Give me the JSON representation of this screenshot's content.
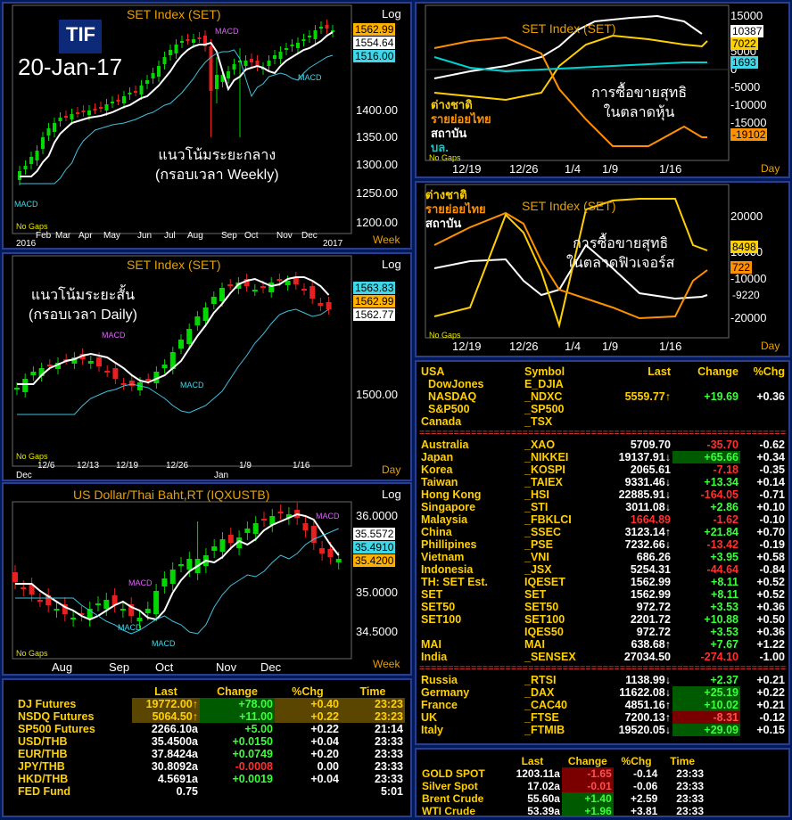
{
  "tif_logo": "TIF",
  "date_label": "20-Jan-17",
  "set_weekly": {
    "title": "SET Index (SET)",
    "scale": "Log",
    "unit": "Week",
    "no_gaps": "No Gaps",
    "note_line1": "แนวโน้มระยะกลาง",
    "note_line2": "(กรอบเวลา Weekly)",
    "y_ticks": [
      "1400.00",
      "1350.00",
      "1300.00",
      "1250.00",
      "1200.00"
    ],
    "x_ticks": [
      "Feb",
      "Mar",
      "Apr",
      "May",
      "Jun",
      "Jul",
      "Aug",
      "Sep",
      "Oct",
      "Nov",
      "Dec"
    ],
    "x_years": [
      "2016",
      "2017"
    ],
    "badges": [
      "1562.99",
      "1554.64",
      "1516.00"
    ],
    "macd": [
      "MACD",
      "MACD",
      "MACD"
    ]
  },
  "set_daily": {
    "title": "SET Index (SET)",
    "scale": "Log",
    "unit": "Day",
    "no_gaps": "No Gaps",
    "note_line1": "แนวโน้มระยะสั้น",
    "note_line2": "(กรอบเวลา Daily)",
    "y_ticks": [
      "1500.00"
    ],
    "x_ticks": [
      "12/6",
      "12/13",
      "12/19",
      "12/26",
      "1/9",
      "1/16"
    ],
    "x_months": [
      "Dec",
      "Jan"
    ],
    "badges": [
      "1563.83",
      "1562.99",
      "1562.77"
    ],
    "macd": [
      "MACD",
      "MACD"
    ]
  },
  "usd_thb": {
    "title": "US Dollar/Thai Baht,RT (IQXUSTB)",
    "scale": "Log",
    "unit": "Week",
    "no_gaps": "No Gaps",
    "y_ticks": [
      "36.0000",
      "35.0000",
      "34.5000"
    ],
    "x_ticks": [
      "Aug",
      "Sep",
      "Oct",
      "Nov",
      "Dec"
    ],
    "badges": [
      "35.5572",
      "35.4910",
      "35.4200"
    ],
    "macd": [
      "MACD",
      "MACD",
      "MACD",
      "MACD"
    ]
  },
  "net_stock": {
    "title": "SET Index (SET)",
    "unit": "Day",
    "no_gaps": "No Gaps",
    "note_line1": "การซื้อขายสุทธิ",
    "note_line2": "ในตลาดหุ้น",
    "legend": [
      "ต่างชาติ",
      "รายย่อยไทย",
      "สถาบัน",
      "บล."
    ],
    "y_ticks": [
      "15000",
      "10000",
      "5000",
      "0",
      "-5000",
      "-10000",
      "-15000"
    ],
    "x_ticks": [
      "12/19",
      "12/26",
      "1/4",
      "1/9",
      "1/16"
    ],
    "badges": [
      "10387",
      "7022",
      "1693",
      "-19102"
    ]
  },
  "net_futures": {
    "title": "SET Index (SET)",
    "unit": "Day",
    "no_gaps": "No Gaps",
    "note_line1": "การซื้อขายสุทธิ",
    "note_line2": "ในตลาดฟิวเจอร์ส",
    "legend": [
      "ต่างชาติ",
      "รายย่อยไทย",
      "สถาบัน"
    ],
    "y_ticks": [
      "20000",
      "10000",
      "-10000",
      "-20000"
    ],
    "x_ticks": [
      "12/19",
      "12/26",
      "1/4",
      "1/9",
      "1/16"
    ],
    "badges": [
      "8498",
      "722",
      "-9220"
    ]
  },
  "world": {
    "headers": [
      "USA",
      "Symbol",
      "Last",
      "Change",
      "%Chg"
    ],
    "separator": "==========================================================================",
    "usa": [
      {
        "name": "DowJones",
        "symbol": "E_DJIA",
        "last": "",
        "change": "",
        "pct": "",
        "dir": ""
      },
      {
        "name": "NASDAQ",
        "symbol": "_NDXC",
        "last": "5559.77↑",
        "change": "+19.69",
        "pct": "+0.36",
        "dir": "up"
      },
      {
        "name": "S&P500",
        "symbol": "_SP500",
        "last": "",
        "change": "",
        "pct": "",
        "dir": ""
      },
      {
        "name": "Canada",
        "symbol": "_TSX",
        "last": "",
        "change": "",
        "pct": "",
        "dir": ""
      }
    ],
    "asia": [
      {
        "name": "Australia",
        "symbol": "_XAO",
        "last": "5709.70",
        "change": "-35.70",
        "pct": "-0.62",
        "dir": "dn"
      },
      {
        "name": "Japan",
        "symbol": "_NIKKEI",
        "last": "19137.91↓",
        "change": "+65.66",
        "pct": "+0.34",
        "dir": "upb"
      },
      {
        "name": "Korea",
        "symbol": "_KOSPI",
        "last": "2065.61",
        "change": "-7.18",
        "pct": "-0.35",
        "dir": "dn"
      },
      {
        "name": "Taiwan",
        "symbol": "_TAIEX",
        "last": "9331.46↓",
        "change": "+13.34",
        "pct": "+0.14",
        "dir": "up"
      },
      {
        "name": "Hong Kong",
        "symbol": "_HSI",
        "last": "22885.91↓",
        "change": "-164.05",
        "pct": "-0.71",
        "dir": "dn"
      },
      {
        "name": "Singapore",
        "symbol": "_STI",
        "last": "3011.08↓",
        "change": "+2.86",
        "pct": "+0.10",
        "dir": "up"
      },
      {
        "name": "Malaysia",
        "symbol": "_FBKLCI",
        "last": "1664.89",
        "change": "-1.62",
        "pct": "-0.10",
        "dir": "dnl"
      },
      {
        "name": "China",
        "symbol": "_SSEC",
        "last": "3123.14↑",
        "change": "+21.84",
        "pct": "+0.70",
        "dir": "up"
      },
      {
        "name": "Phillipines",
        "symbol": "_PSE",
        "last": "7232.66↓",
        "change": "-13.42",
        "pct": "-0.19",
        "dir": "dn"
      },
      {
        "name": "Vietnam",
        "symbol": "_VNI",
        "last": "686.26",
        "change": "+3.95",
        "pct": "+0.58",
        "dir": "up"
      },
      {
        "name": "Indonesia",
        "symbol": "_JSX",
        "last": "5254.31",
        "change": "-44.64",
        "pct": "-0.84",
        "dir": "dn"
      },
      {
        "name": "TH: SET Est.",
        "symbol": "IQESET",
        "last": "1562.99",
        "change": "+8.11",
        "pct": "+0.52",
        "dir": "up"
      },
      {
        "name": "  SET",
        "symbol": "SET",
        "last": "1562.99",
        "change": "+8.11",
        "pct": "+0.52",
        "dir": "up"
      },
      {
        "name": "  SET50",
        "symbol": "SET50",
        "last": "972.72",
        "change": "+3.53",
        "pct": "+0.36",
        "dir": "up"
      },
      {
        "name": "  SET100",
        "symbol": "SET100",
        "last": "2201.72",
        "change": "+10.88",
        "pct": "+0.50",
        "dir": "up"
      },
      {
        "name": "",
        "symbol": "IQES50",
        "last": "972.72",
        "change": "+3.53",
        "pct": "+0.36",
        "dir": "up"
      },
      {
        "name": "  MAI",
        "symbol": "MAI",
        "last": "638.68↑",
        "change": "+7.67",
        "pct": "+1.22",
        "dir": "up"
      },
      {
        "name": "India",
        "symbol": "_SENSEX",
        "last": "27034.50",
        "change": "-274.10",
        "pct": "-1.00",
        "dir": "dn"
      }
    ],
    "europe": [
      {
        "name": "Russia",
        "symbol": "_RTSI",
        "last": "1138.99↓",
        "change": "+2.37",
        "pct": "+0.21",
        "dir": "up"
      },
      {
        "name": "Germany",
        "symbol": "_DAX",
        "last": "11622.08↓",
        "change": "+25.19",
        "pct": "+0.22",
        "dir": "upb"
      },
      {
        "name": "France",
        "symbol": "_CAC40",
        "last": "4851.16↑",
        "change": "+10.02",
        "pct": "+0.21",
        "dir": "upb"
      },
      {
        "name": "UK",
        "symbol": "_FTSE",
        "last": "7200.13↑",
        "change": "-8.31",
        "pct": "-0.12",
        "dir": "dnb"
      },
      {
        "name": "Italy",
        "symbol": "_FTMIB",
        "last": "19520.05↓",
        "change": "+29.09",
        "pct": "+0.15",
        "dir": "upb"
      }
    ]
  },
  "futures": {
    "headers": [
      "",
      "Last",
      "Change",
      "%Chg",
      "Time"
    ],
    "rows": [
      {
        "name": "DJ Futures",
        "last": "19772.00↑",
        "change": "+78.00",
        "pct": "+0.40",
        "time": "23:23",
        "hl": true
      },
      {
        "name": "NSDQ Futures",
        "last": "5064.50↑",
        "change": "+11.00",
        "pct": "+0.22",
        "time": "23:23",
        "hl": true
      },
      {
        "name": "SP500 Futures",
        "last": "2266.10a",
        "change": "+5.00",
        "pct": "+0.22",
        "time": "21:14",
        "hl": false
      },
      {
        "name": "USD/THB",
        "last": "35.4500a",
        "change": "+0.0150",
        "pct": "+0.04",
        "time": "23:33",
        "hl": false
      },
      {
        "name": "EUR/THB",
        "last": "37.8424a",
        "change": "+0.0749",
        "pct": "+0.20",
        "time": "23:33",
        "hl": false
      },
      {
        "name": "JPY/THB",
        "last": "30.8092a",
        "change": "-0.0008",
        "pct": "0.00",
        "time": "23:33",
        "hl": false
      },
      {
        "name": "HKD/THB",
        "last": "4.5691a",
        "change": "+0.0019",
        "pct": "+0.04",
        "time": "23:33",
        "hl": false
      },
      {
        "name": "FED Fund",
        "last": "0.75",
        "change": "",
        "pct": "",
        "time": "5:01",
        "hl": false
      }
    ]
  },
  "commod": {
    "headers": [
      "",
      "Last",
      "Change",
      "%Chg",
      "Time"
    ],
    "rows": [
      {
        "name": "GOLD SPOT",
        "last": "1203.11a",
        "change": "-1.65",
        "pct": "-0.14",
        "time": "23:33",
        "dir": "dnb"
      },
      {
        "name": "Silver Spot",
        "last": "17.02a",
        "change": "-0.01",
        "pct": "-0.06",
        "time": "23:33",
        "dir": "dnb"
      },
      {
        "name": "Brent Crude",
        "last": "55.60a",
        "change": "+1.40",
        "pct": "+2.59",
        "time": "23:33",
        "dir": "upb"
      },
      {
        "name": "WTI Crude",
        "last": "53.39a",
        "change": "+1.96",
        "pct": "+3.81",
        "time": "23:33",
        "dir": "upb"
      }
    ]
  },
  "colors": {
    "bull_candle": "#00d800",
    "bear_candle": "#e82020",
    "foreign_line": "#ffd000",
    "retail_line": "#ff9000",
    "inst_line": "#ffffff",
    "broker_line": "#00d0d0",
    "ma_fast": "#ffffff",
    "ma_slow": "#40c0e0"
  }
}
